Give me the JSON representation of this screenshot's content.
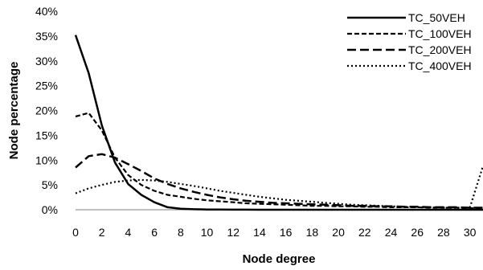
{
  "chart_data": {
    "type": "line",
    "title": "",
    "xlabel": "Node degree",
    "ylabel": "Node percentage",
    "xlim": [
      0,
      31
    ],
    "ylim": [
      0,
      40
    ],
    "x_ticks": [
      0,
      2,
      4,
      6,
      8,
      10,
      12,
      14,
      16,
      18,
      20,
      22,
      24,
      26,
      28,
      30
    ],
    "y_ticks": [
      "0%",
      "5%",
      "10%",
      "15%",
      "20%",
      "25%",
      "30%",
      "35%",
      "40%"
    ],
    "y_tick_values": [
      0,
      5,
      10,
      15,
      20,
      25,
      30,
      35,
      40
    ],
    "grid": false,
    "legend": "top-right",
    "x": [
      0,
      1,
      2,
      3,
      4,
      5,
      6,
      7,
      8,
      9,
      10,
      11,
      12,
      13,
      14,
      15,
      16,
      17,
      18,
      19,
      20,
      21,
      22,
      23,
      24,
      25,
      26,
      27,
      28,
      29,
      30,
      31
    ],
    "series": [
      {
        "name": "TC_50VEH",
        "style": "solid",
        "values": [
          35.2,
          27.5,
          17.0,
          9.5,
          5.2,
          3.0,
          1.5,
          0.5,
          0.2,
          0.1,
          0.05,
          0.03,
          0.02,
          0.01,
          0,
          0,
          0,
          0,
          0,
          0,
          0,
          0,
          0,
          0,
          0,
          0,
          0,
          0,
          0,
          0,
          0,
          0
        ]
      },
      {
        "name": "TC_100VEH",
        "style": "dash",
        "values": [
          18.8,
          19.5,
          16.0,
          10.5,
          7.0,
          5.0,
          3.8,
          3.0,
          2.6,
          2.2,
          1.9,
          1.7,
          1.5,
          1.3,
          1.2,
          1.1,
          1.0,
          0.9,
          0.8,
          0.8,
          0.7,
          0.7,
          0.6,
          0.6,
          0.5,
          0.5,
          0.5,
          0.4,
          0.4,
          0.4,
          0.3,
          0.3
        ]
      },
      {
        "name": "TC_200VEH",
        "style": "longdash",
        "values": [
          8.5,
          10.8,
          11.2,
          10.5,
          9.2,
          7.8,
          6.3,
          5.2,
          4.3,
          3.6,
          3.0,
          2.5,
          2.1,
          1.8,
          1.6,
          1.4,
          1.3,
          1.2,
          1.1,
          1.0,
          0.9,
          0.8,
          0.8,
          0.7,
          0.7,
          0.6,
          0.6,
          0.5,
          0.5,
          0.5,
          0.4,
          0.4
        ]
      },
      {
        "name": "TC_400VEH",
        "style": "dot",
        "values": [
          3.3,
          4.3,
          5.0,
          5.6,
          5.9,
          6.0,
          5.9,
          5.6,
          5.2,
          4.8,
          4.3,
          3.8,
          3.4,
          3.0,
          2.6,
          2.3,
          2.0,
          1.8,
          1.6,
          1.4,
          1.2,
          1.0,
          0.9,
          0.8,
          0.7,
          0.6,
          0.5,
          0.5,
          0.4,
          0.4,
          0.4,
          8.8
        ]
      }
    ]
  }
}
